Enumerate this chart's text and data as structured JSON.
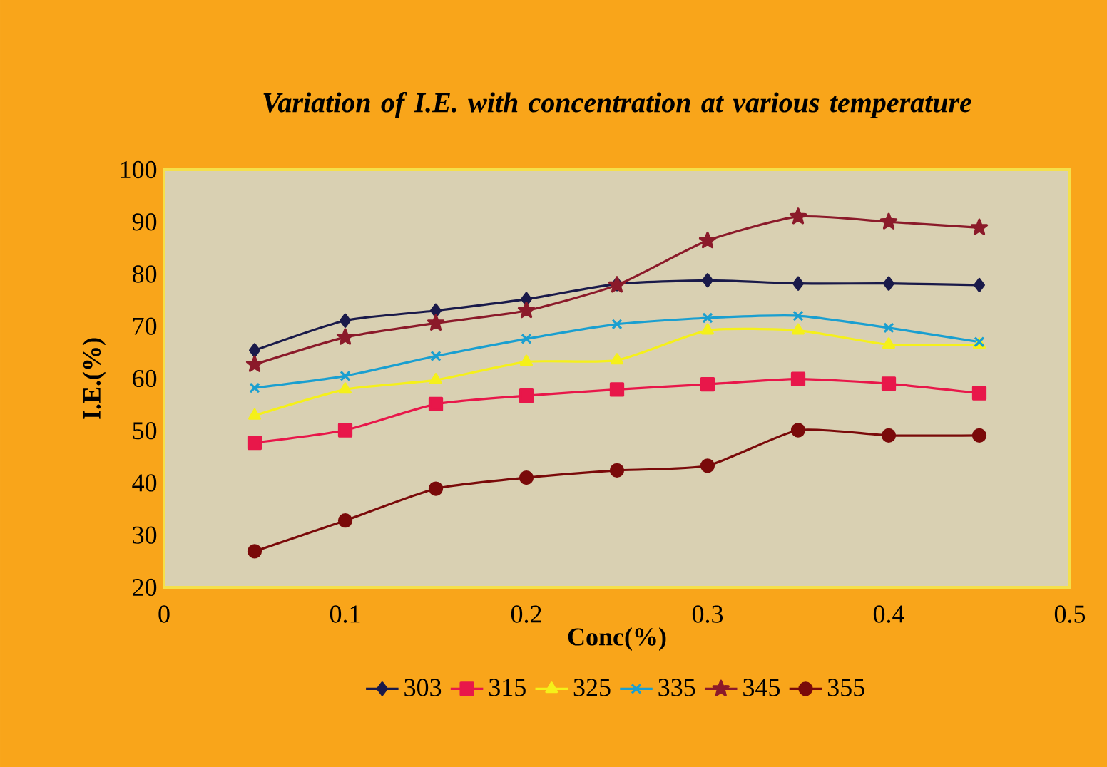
{
  "chart_data": {
    "type": "line",
    "title": "Variation of I.E. with concentration at various temperature",
    "xlabel": "Conc(%)",
    "ylabel": "I.E.(%)",
    "x": [
      0.05,
      0.1,
      0.15,
      0.2,
      0.25,
      0.3,
      0.35,
      0.4,
      0.45
    ],
    "xlim": [
      0,
      0.5
    ],
    "xticks": [
      0,
      0.1,
      0.2,
      0.3,
      0.4,
      0.5
    ],
    "ylim": [
      20,
      100
    ],
    "yticks": [
      20,
      30,
      40,
      50,
      60,
      70,
      80,
      90,
      100
    ],
    "legend": "bottom",
    "grid": false,
    "line_style": "solid",
    "series": [
      {
        "name": "303",
        "color": "#1a1a4a",
        "marker": "diamond",
        "values": [
          65.4,
          71.1,
          73,
          75.2,
          78.1,
          78.8,
          78.2,
          78.2,
          77.9
        ]
      },
      {
        "name": "315",
        "color": "#e8174a",
        "marker": "square",
        "values": [
          47.7,
          50.1,
          55.1,
          56.7,
          57.9,
          58.9,
          59.9,
          59,
          57.2
        ]
      },
      {
        "name": "325",
        "color": "#f5f01a",
        "marker": "triangle",
        "values": [
          52.9,
          57.9,
          59.7,
          63.2,
          63.5,
          69.2,
          69.2,
          66.5,
          66.5
        ]
      },
      {
        "name": "335",
        "color": "#1a9fd0",
        "marker": "cross",
        "values": [
          58.2,
          60.5,
          64.3,
          67.6,
          70.4,
          71.6,
          72,
          69.7,
          67
        ]
      },
      {
        "name": "345",
        "color": "#8b1a2a",
        "marker": "star",
        "values": [
          62.7,
          67.9,
          70.6,
          73,
          77.9,
          86.4,
          91,
          90,
          88.9
        ]
      },
      {
        "name": "355",
        "color": "#7a0a0a",
        "marker": "circle",
        "values": [
          26.9,
          32.8,
          38.9,
          41,
          42.4,
          43.3,
          50.1,
          49.1,
          49.1
        ]
      }
    ]
  }
}
